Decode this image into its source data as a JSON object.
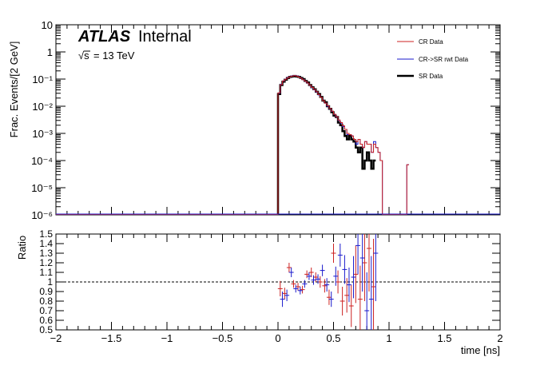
{
  "header": {
    "atlas": "ATLAS",
    "internal": "Internal",
    "sqrt_sym": "√s",
    "energy": "= 13 TeV"
  },
  "legend": {
    "entries": [
      {
        "label": "CR Data",
        "color": "#cc2222"
      },
      {
        "label": "CR->SR rwt Data",
        "color": "#1a1acc"
      },
      {
        "label": "SR Data",
        "color": "#000000"
      }
    ]
  },
  "chart_data": [
    {
      "type": "line",
      "title": "",
      "xlabel": "",
      "ylabel": "Frac. Events/[2 GeV]",
      "xlim": [
        -2,
        2
      ],
      "ylim": [
        1e-06,
        10
      ],
      "yscale": "log",
      "y_ticks": [
        "10⁻⁶",
        "10⁻⁵",
        "10⁻⁴",
        "10⁻³",
        "10⁻²",
        "10⁻¹",
        "1",
        "10"
      ],
      "bin_width": 0.02,
      "series": [
        {
          "name": "SR Data",
          "color": "#000000",
          "points": [
            [
              0.0,
              0.028
            ],
            [
              0.02,
              0.06
            ],
            [
              0.04,
              0.08
            ],
            [
              0.06,
              0.095
            ],
            [
              0.08,
              0.11
            ],
            [
              0.1,
              0.12
            ],
            [
              0.12,
              0.125
            ],
            [
              0.14,
              0.13
            ],
            [
              0.16,
              0.125
            ],
            [
              0.18,
              0.12
            ],
            [
              0.2,
              0.11
            ],
            [
              0.22,
              0.1
            ],
            [
              0.24,
              0.085
            ],
            [
              0.26,
              0.075
            ],
            [
              0.28,
              0.06
            ],
            [
              0.3,
              0.05
            ],
            [
              0.32,
              0.042
            ],
            [
              0.34,
              0.034
            ],
            [
              0.36,
              0.028
            ],
            [
              0.38,
              0.022
            ],
            [
              0.4,
              0.016
            ],
            [
              0.42,
              0.014
            ],
            [
              0.44,
              0.01
            ],
            [
              0.46,
              0.008
            ],
            [
              0.48,
              0.006
            ],
            [
              0.5,
              0.0045
            ],
            [
              0.52,
              0.004
            ],
            [
              0.54,
              0.0025
            ],
            [
              0.56,
              0.002
            ],
            [
              0.58,
              0.0012
            ],
            [
              0.6,
              0.0008
            ],
            [
              0.62,
              0.0006
            ],
            [
              0.64,
              0.0008
            ],
            [
              0.66,
              0.0006
            ],
            [
              0.68,
              0.0005
            ],
            [
              0.7,
              0.0003
            ],
            [
              0.72,
              0.0002
            ],
            [
              0.74,
              0.0003
            ],
            [
              0.76,
              5e-05
            ],
            [
              0.78,
              0.0001
            ],
            [
              0.8,
              0.0002
            ],
            [
              0.82,
              0.0001
            ],
            [
              0.84,
              5e-05
            ],
            [
              0.86,
              0.0001
            ]
          ]
        },
        {
          "name": "CR->SR rwt Data",
          "color": "#1a1acc",
          "points": [
            [
              0.0,
              0.03
            ],
            [
              0.02,
              0.065
            ],
            [
              0.04,
              0.085
            ],
            [
              0.06,
              0.1
            ],
            [
              0.08,
              0.115
            ],
            [
              0.1,
              0.12
            ],
            [
              0.12,
              0.13
            ],
            [
              0.14,
              0.135
            ],
            [
              0.16,
              0.13
            ],
            [
              0.18,
              0.12
            ],
            [
              0.2,
              0.105
            ],
            [
              0.22,
              0.095
            ],
            [
              0.24,
              0.082
            ],
            [
              0.26,
              0.07
            ],
            [
              0.28,
              0.058
            ],
            [
              0.3,
              0.048
            ],
            [
              0.32,
              0.04
            ],
            [
              0.34,
              0.033
            ],
            [
              0.36,
              0.026
            ],
            [
              0.38,
              0.021
            ],
            [
              0.4,
              0.016
            ],
            [
              0.42,
              0.013
            ],
            [
              0.44,
              0.01
            ],
            [
              0.46,
              0.008
            ],
            [
              0.48,
              0.0065
            ],
            [
              0.5,
              0.005
            ],
            [
              0.52,
              0.004
            ],
            [
              0.54,
              0.003
            ],
            [
              0.56,
              0.0024
            ],
            [
              0.58,
              0.0018
            ],
            [
              0.6,
              0.0014
            ],
            [
              0.62,
              0.0009
            ],
            [
              0.64,
              0.0009
            ],
            [
              0.66,
              0.0008
            ],
            [
              0.68,
              0.0006
            ],
            [
              0.7,
              0.0004
            ],
            [
              0.72,
              0.0006
            ],
            [
              0.74,
              0.0004
            ],
            [
              0.76,
              0.0003
            ],
            [
              0.78,
              0.0005
            ],
            [
              0.8,
              0.0004
            ],
            [
              0.82,
              0.0004
            ],
            [
              0.84,
              0.0002
            ],
            [
              0.86,
              0.0005
            ],
            [
              0.88,
              0.0003
            ],
            [
              0.9,
              0.0002
            ],
            [
              0.92,
              0.0001
            ],
            [
              0.94,
              1e-06
            ],
            [
              1.16,
              7e-05
            ]
          ]
        },
        {
          "name": "CR Data",
          "color": "#cc2222",
          "points": [
            [
              0.0,
              0.031
            ],
            [
              0.02,
              0.063
            ],
            [
              0.04,
              0.086
            ],
            [
              0.06,
              0.098
            ],
            [
              0.08,
              0.113
            ],
            [
              0.1,
              0.122
            ],
            [
              0.12,
              0.128
            ],
            [
              0.14,
              0.133
            ],
            [
              0.16,
              0.128
            ],
            [
              0.18,
              0.118
            ],
            [
              0.2,
              0.106
            ],
            [
              0.22,
              0.094
            ],
            [
              0.24,
              0.083
            ],
            [
              0.26,
              0.071
            ],
            [
              0.28,
              0.059
            ],
            [
              0.3,
              0.049
            ],
            [
              0.32,
              0.041
            ],
            [
              0.34,
              0.034
            ],
            [
              0.36,
              0.027
            ],
            [
              0.38,
              0.021
            ],
            [
              0.4,
              0.016
            ],
            [
              0.42,
              0.013
            ],
            [
              0.44,
              0.0105
            ],
            [
              0.46,
              0.0082
            ],
            [
              0.48,
              0.0066
            ],
            [
              0.5,
              0.0051
            ],
            [
              0.52,
              0.0041
            ],
            [
              0.54,
              0.0031
            ],
            [
              0.56,
              0.0025
            ],
            [
              0.58,
              0.0019
            ],
            [
              0.6,
              0.0014
            ],
            [
              0.62,
              0.001
            ],
            [
              0.64,
              0.0009
            ],
            [
              0.66,
              0.0008
            ],
            [
              0.68,
              0.0006
            ],
            [
              0.7,
              0.0005
            ],
            [
              0.72,
              0.0006
            ],
            [
              0.74,
              0.0004
            ],
            [
              0.76,
              0.0003
            ],
            [
              0.78,
              0.0005
            ],
            [
              0.8,
              0.0004
            ],
            [
              0.82,
              0.0004
            ],
            [
              0.84,
              0.0002
            ],
            [
              0.86,
              0.0004
            ],
            [
              0.88,
              0.0003
            ],
            [
              0.9,
              0.0002
            ],
            [
              0.92,
              0.0001
            ],
            [
              0.94,
              1e-06
            ],
            [
              1.16,
              7e-05
            ]
          ]
        }
      ]
    },
    {
      "type": "scatter",
      "title": "",
      "xlabel": "time [ns]",
      "ylabel": "Ratio",
      "xlim": [
        -2,
        2
      ],
      "ylim": [
        0.5,
        1.5
      ],
      "x_ticks": [
        "−2",
        "−1.5",
        "−1",
        "−0.5",
        "0",
        "0.5",
        "1",
        "1.5",
        "2"
      ],
      "y_ticks": [
        "0.5",
        "0.6",
        "0.7",
        "0.8",
        "0.9",
        "1",
        "1.1",
        "1.2",
        "1.3",
        "1.4",
        "1.5"
      ],
      "reference_line": 1.0,
      "series": [
        {
          "name": "CR Data",
          "color": "#cc2222",
          "points": [
            [
              0.02,
              0.93,
              0.08
            ],
            [
              0.06,
              0.88,
              0.06
            ],
            [
              0.1,
              1.15,
              0.05
            ],
            [
              0.14,
              0.98,
              0.04
            ],
            [
              0.18,
              0.95,
              0.04
            ],
            [
              0.22,
              0.92,
              0.04
            ],
            [
              0.26,
              1.08,
              0.04
            ],
            [
              0.3,
              1.1,
              0.05
            ],
            [
              0.34,
              1.05,
              0.05
            ],
            [
              0.38,
              1.0,
              0.06
            ],
            [
              0.42,
              0.96,
              0.07
            ],
            [
              0.46,
              0.84,
              0.08
            ],
            [
              0.5,
              1.3,
              0.1
            ],
            [
              0.54,
              1.0,
              0.12
            ],
            [
              0.58,
              0.8,
              0.15
            ],
            [
              0.62,
              0.86,
              0.18
            ],
            [
              0.66,
              0.75,
              0.22
            ],
            [
              0.7,
              1.08,
              0.3
            ],
            [
              0.74,
              0.82,
              0.35
            ],
            [
              0.78,
              1.2,
              0.4
            ],
            [
              0.82,
              1.35,
              0.45
            ],
            [
              0.86,
              0.95,
              0.5
            ]
          ]
        },
        {
          "name": "CR->SR rwt Data",
          "color": "#1a1acc",
          "points": [
            [
              0.04,
              0.82,
              0.08
            ],
            [
              0.08,
              0.86,
              0.06
            ],
            [
              0.12,
              1.1,
              0.05
            ],
            [
              0.16,
              0.93,
              0.04
            ],
            [
              0.2,
              0.91,
              0.04
            ],
            [
              0.24,
              0.98,
              0.04
            ],
            [
              0.28,
              1.06,
              0.04
            ],
            [
              0.32,
              1.02,
              0.05
            ],
            [
              0.36,
              1.03,
              0.05
            ],
            [
              0.4,
              1.12,
              0.06
            ],
            [
              0.44,
              0.97,
              0.07
            ],
            [
              0.48,
              0.82,
              0.08
            ],
            [
              0.52,
              1.06,
              0.1
            ],
            [
              0.56,
              1.28,
              0.12
            ],
            [
              0.6,
              1.13,
              0.15
            ],
            [
              0.64,
              0.97,
              0.18
            ],
            [
              0.68,
              1.05,
              0.22
            ],
            [
              0.72,
              1.38,
              0.3
            ],
            [
              0.76,
              1.25,
              0.35
            ],
            [
              0.8,
              0.7,
              0.4
            ],
            [
              0.84,
              0.82,
              0.45
            ],
            [
              0.88,
              1.3,
              0.5
            ]
          ]
        }
      ]
    }
  ]
}
